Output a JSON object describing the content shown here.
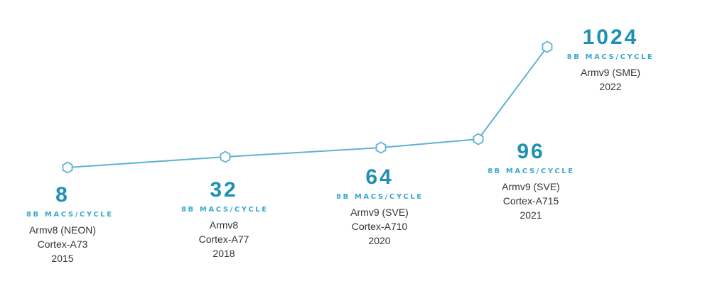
{
  "chart_data": {
    "type": "line",
    "title": "",
    "xlabel": "",
    "ylabel": "",
    "grid": false,
    "legend": "none",
    "line_color": "#5fb3d0",
    "value_color": "#1e90b4",
    "unit_color": "#3aa8cf",
    "points": [
      {
        "value": "8",
        "unit": "8B MACS/CYCLE",
        "architecture": "Armv8 (NEON)",
        "core": "Cortex-A73",
        "year": "2015"
      },
      {
        "value": "32",
        "unit": "8B MACS/CYCLE",
        "architecture": "Armv8",
        "core": "Cortex-A77",
        "year": "2018"
      },
      {
        "value": "64",
        "unit": "8B MACS/CYCLE",
        "architecture": "Armv9 (SVE)",
        "core": "Cortex-A710",
        "year": "2020"
      },
      {
        "value": "96",
        "unit": "8B MACS/CYCLE",
        "architecture": "Armv9 (SVE)",
        "core": "Cortex-A715",
        "year": "2021"
      },
      {
        "value": "1024",
        "unit": "8B MACS/CYCLE",
        "architecture": "Armv9 (SME)",
        "core": "",
        "year": "2022"
      }
    ]
  }
}
